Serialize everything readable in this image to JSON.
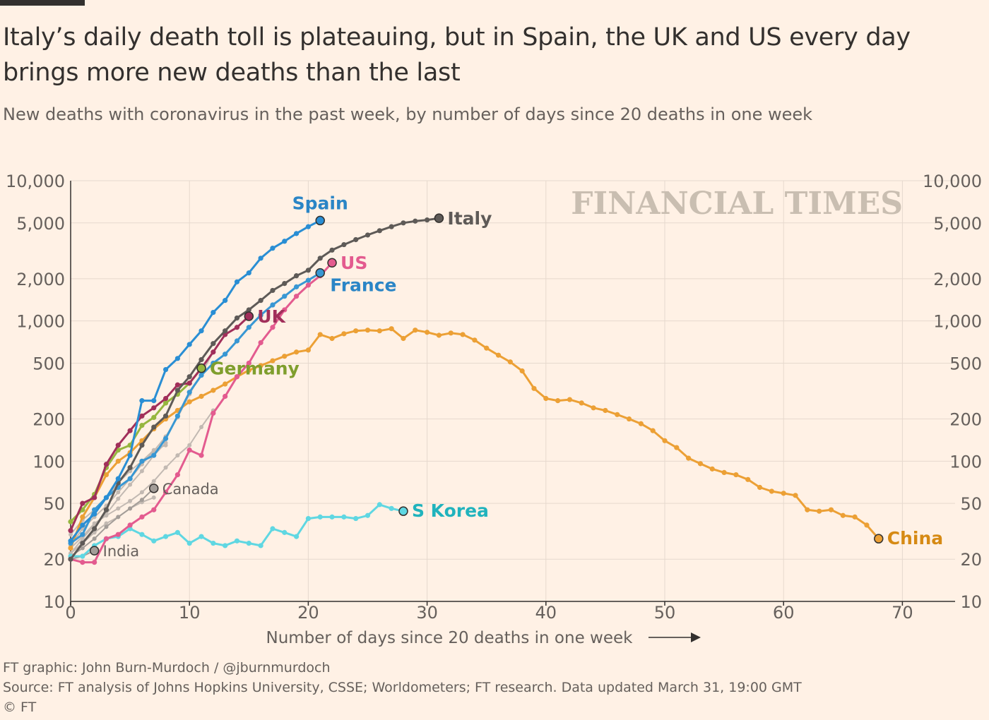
{
  "title": "Italy’s daily death toll is plateauing, but in Spain, the UK and US every day brings more new deaths than the last",
  "subtitle": "New deaths with coronavirus in the past week, by number of days since 20 deaths in one week",
  "watermark": "FINANCIAL TIMES",
  "footer": {
    "credit": "FT graphic: John Burn-Murdoch / @jburnmurdoch",
    "source": "Source: FT analysis of Johns Hopkins University, CSSE; Worldometers; FT research. Data updated March 31, 19:00 GMT",
    "copyright": "© FT"
  },
  "chart_data": {
    "type": "line",
    "title": "Italy’s daily death toll is plateauing, but in Spain, the UK and US every day brings more new deaths than the last",
    "xlabel": "Number of days since 20 deaths in one week",
    "ylabel": "New deaths with coronavirus in the past week",
    "yscale": "log",
    "xlim": [
      0,
      74
    ],
    "ylim": [
      10,
      10000
    ],
    "x_ticks": [
      0,
      10,
      20,
      30,
      40,
      50,
      60,
      70
    ],
    "x_tick_labels": [
      "0",
      "10",
      "20",
      "30",
      "40",
      "50",
      "60",
      "70"
    ],
    "y_ticks": [
      10,
      20,
      50,
      100,
      200,
      500,
      1000,
      2000,
      5000,
      10000
    ],
    "y_tick_labels": [
      "10",
      "20",
      "50",
      "100",
      "200",
      "500",
      "1,000",
      "2,000",
      "5,000",
      "10,000"
    ],
    "series": [
      {
        "name": "Others",
        "label": "",
        "color": "#c2b9b2",
        "highlight": false,
        "values": [
          25,
          33,
          40,
          48,
          60,
          75,
          95,
          118,
          150,
          205,
          300,
          420,
          600
        ]
      },
      {
        "name": "Others 2",
        "label": "",
        "color": "#c2b9b2",
        "highlight": false,
        "values": [
          22,
          28,
          35,
          42,
          54,
          68,
          85,
          110,
          135
        ]
      },
      {
        "name": "Others 3",
        "label": "",
        "color": "#c2b9b2",
        "highlight": false,
        "values": [
          24,
          29,
          36,
          41,
          46,
          52,
          60,
          72,
          90,
          110,
          130,
          175,
          230
        ]
      },
      {
        "name": "Others 4",
        "label": "",
        "color": "#c2b9b2",
        "highlight": false,
        "values": [
          30,
          38,
          45,
          55,
          70,
          85,
          100,
          120,
          130
        ]
      },
      {
        "name": "Others 5",
        "label": "",
        "color": "#c2b9b2",
        "highlight": false,
        "values": [
          22,
          26,
          31,
          36,
          40,
          46,
          51,
          55
        ]
      },
      {
        "name": "Canada",
        "label": "Canada",
        "color": "#a39d98",
        "highlight": false,
        "values": [
          21,
          24,
          28,
          34,
          40,
          46,
          53,
          64
        ]
      },
      {
        "name": "India",
        "label": "India",
        "color": "#a39d98",
        "highlight": false,
        "values": [
          20,
          21,
          23
        ]
      },
      {
        "name": "China",
        "label": "China",
        "color": "#eca035",
        "highlight": true,
        "values": [
          24,
          40,
          55,
          80,
          100,
          115,
          140,
          170,
          200,
          230,
          265,
          290,
          320,
          355,
          400,
          445,
          480,
          520,
          560,
          600,
          620,
          800,
          750,
          810,
          850,
          860,
          850,
          880,
          750,
          860,
          830,
          790,
          820,
          800,
          730,
          640,
          570,
          510,
          440,
          330,
          280,
          270,
          275,
          260,
          240,
          230,
          215,
          200,
          185,
          165,
          140,
          125,
          105,
          96,
          88,
          83,
          80,
          74,
          65,
          61,
          59,
          57,
          45,
          44,
          45,
          41,
          40,
          35,
          28
        ]
      },
      {
        "name": "S Korea",
        "label": "S Korea",
        "color": "#5fd7e2",
        "highlight": true,
        "values": [
          21,
          21,
          25,
          28,
          29,
          33,
          30,
          27,
          29,
          31,
          26,
          29,
          26,
          25,
          27,
          26,
          25,
          33,
          31,
          29,
          39,
          40,
          40,
          40,
          39,
          41,
          49,
          46,
          44
        ]
      },
      {
        "name": "Germany",
        "label": "Germany",
        "color": "#96b63f",
        "highlight": true,
        "values": [
          37,
          45,
          58,
          90,
          120,
          130,
          180,
          205,
          260,
          300,
          360,
          460
        ]
      },
      {
        "name": "UK",
        "label": "UK",
        "color": "#a12f5a",
        "highlight": true,
        "values": [
          32,
          50,
          55,
          95,
          130,
          165,
          210,
          240,
          280,
          350,
          360,
          460,
          600,
          800,
          900,
          1080
        ]
      },
      {
        "name": "France",
        "label": "France",
        "color": "#3897d3",
        "highlight": true,
        "values": [
          26,
          30,
          45,
          55,
          65,
          75,
          100,
          110,
          145,
          210,
          310,
          410,
          500,
          580,
          720,
          900,
          1100,
          1300,
          1500,
          1750,
          1950,
          2200
        ]
      },
      {
        "name": "US",
        "label": "US",
        "color": "#e35b8f",
        "highlight": true,
        "values": [
          20,
          19,
          19,
          28,
          30,
          35,
          40,
          45,
          60,
          80,
          120,
          110,
          220,
          290,
          400,
          500,
          700,
          900,
          1200,
          1500,
          1800,
          2100,
          2600
        ]
      },
      {
        "name": "Italy",
        "label": "Italy",
        "color": "#5e5a57",
        "highlight": true,
        "values": [
          20,
          26,
          33,
          45,
          70,
          90,
          130,
          175,
          210,
          320,
          400,
          530,
          690,
          850,
          1050,
          1200,
          1400,
          1650,
          1850,
          2100,
          2300,
          2800,
          3200,
          3500,
          3800,
          4100,
          4400,
          4700,
          5000,
          5150,
          5250,
          5400
        ]
      },
      {
        "name": "Spain",
        "label": "Spain",
        "color": "#298ed4",
        "highlight": true,
        "values": [
          27,
          35,
          42,
          55,
          75,
          110,
          270,
          270,
          450,
          540,
          680,
          850,
          1150,
          1400,
          1900,
          2200,
          2800,
          3300,
          3700,
          4200,
          4700,
          5200
        ]
      }
    ]
  }
}
